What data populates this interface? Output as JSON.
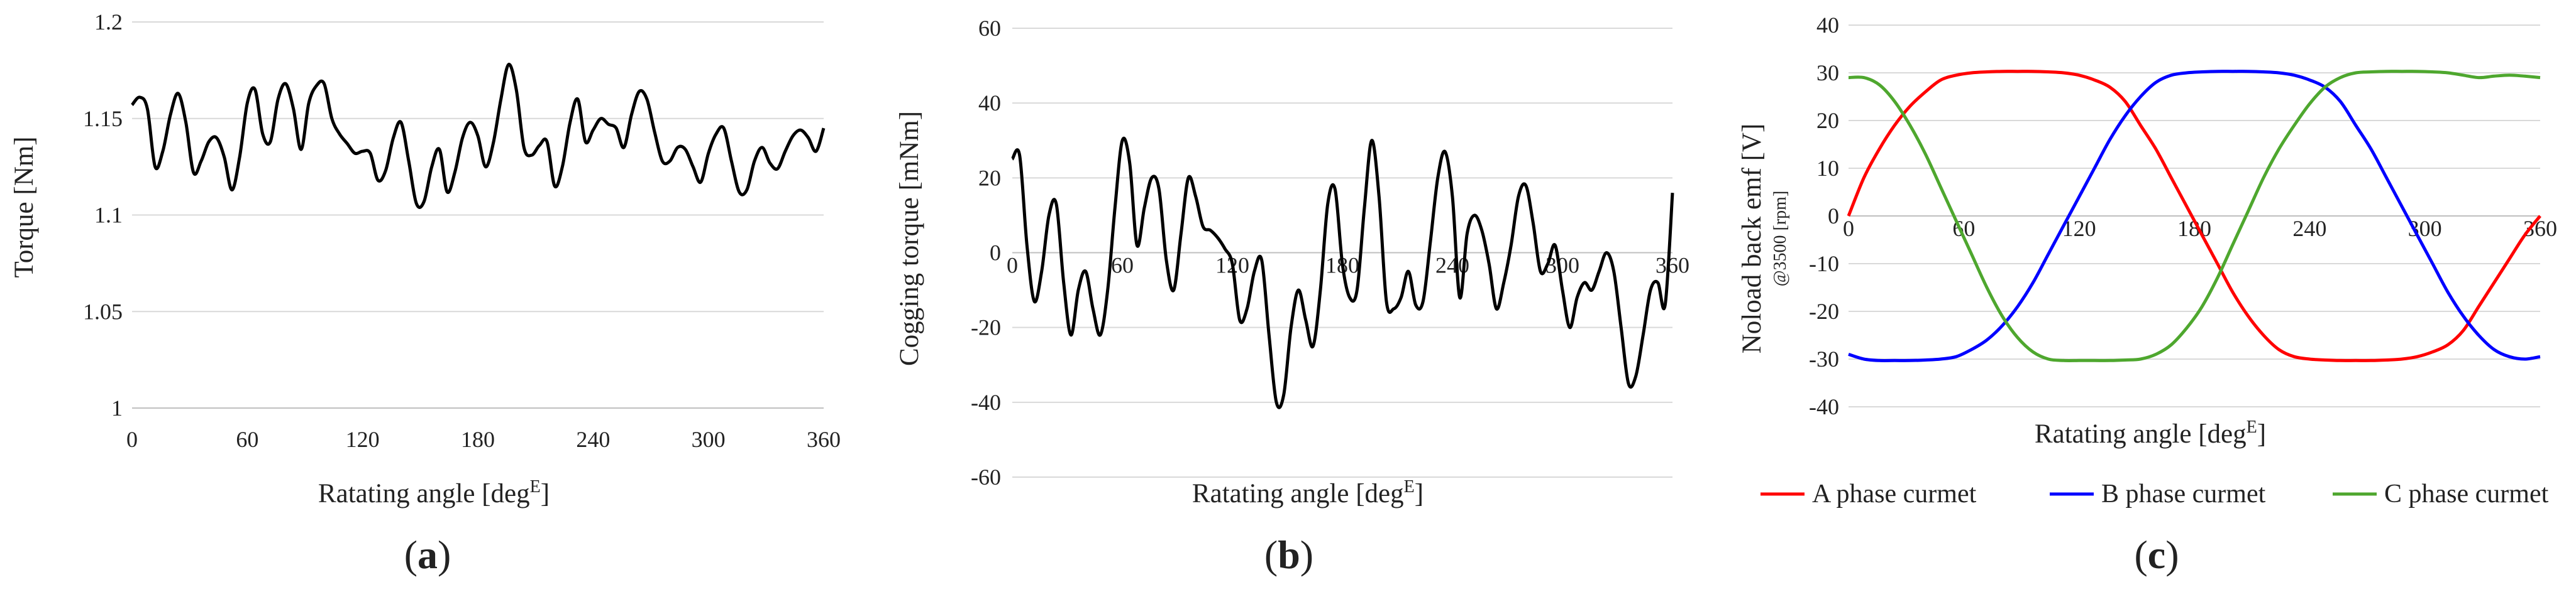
{
  "figure": {
    "panels": [
      {
        "id": "a",
        "label_open": "(",
        "label_letter": "a",
        "label_close": ")"
      },
      {
        "id": "b",
        "label_open": "(",
        "label_letter": "b",
        "label_close": ")"
      },
      {
        "id": "c",
        "label_open": "(",
        "label_letter": "c",
        "label_close": ")"
      }
    ]
  },
  "chart_data": [
    {
      "type": "line",
      "title": "",
      "xlabel": "Ratating angle [deg",
      "xlabel_sup": "E",
      "xlabel_close": "]",
      "ylabel": "Torque [Nm]",
      "xlim": [
        0,
        360
      ],
      "ylim": [
        1.0,
        1.2
      ],
      "xticks": [
        "0",
        "60",
        "120",
        "180",
        "240",
        "300",
        "360"
      ],
      "yticks": [
        "1",
        "1.05",
        "1.1",
        "1.15",
        "1.2"
      ],
      "grid": "horizontal",
      "line_color": "#000000",
      "series": [
        {
          "x": [
            0,
            4,
            8,
            12,
            16,
            20,
            24,
            28,
            32,
            36,
            40,
            44,
            48,
            52,
            56,
            60,
            64,
            68,
            72,
            76,
            80,
            84,
            88,
            92,
            96,
            100,
            104,
            108,
            112,
            116,
            120,
            124,
            128,
            132,
            136,
            140,
            144,
            148,
            152,
            156,
            160,
            164,
            168,
            172,
            176,
            180,
            184,
            188,
            192,
            196,
            200,
            204,
            208,
            212,
            216,
            220,
            224,
            228,
            232,
            236,
            240,
            244,
            248,
            252,
            256,
            260,
            264,
            268,
            272,
            276,
            280,
            284,
            288,
            292,
            296,
            300,
            304,
            308,
            312,
            316,
            320,
            324,
            328,
            332,
            336,
            340,
            344,
            348,
            352,
            356,
            360
          ],
          "values": [
            1.157,
            1.161,
            1.155,
            1.125,
            1.133,
            1.152,
            1.163,
            1.148,
            1.122,
            1.128,
            1.138,
            1.14,
            1.13,
            1.113,
            1.13,
            1.158,
            1.165,
            1.142,
            1.138,
            1.16,
            1.168,
            1.155,
            1.134,
            1.158,
            1.167,
            1.168,
            1.15,
            1.142,
            1.137,
            1.132,
            1.133,
            1.132,
            1.118,
            1.123,
            1.14,
            1.148,
            1.128,
            1.106,
            1.107,
            1.125,
            1.134,
            1.112,
            1.122,
            1.14,
            1.148,
            1.141,
            1.125,
            1.137,
            1.16,
            1.178,
            1.165,
            1.135,
            1.131,
            1.136,
            1.138,
            1.115,
            1.125,
            1.148,
            1.16,
            1.138,
            1.144,
            1.15,
            1.147,
            1.145,
            1.135,
            1.152,
            1.164,
            1.16,
            1.143,
            1.128,
            1.128,
            1.135,
            1.134,
            1.125,
            1.117,
            1.132,
            1.142,
            1.145,
            1.128,
            1.112,
            1.113,
            1.128,
            1.135,
            1.127,
            1.124,
            1.133,
            1.141,
            1.144,
            1.14,
            1.133,
            1.145
          ]
        }
      ]
    },
    {
      "type": "line",
      "title": "",
      "xlabel": "Ratating angle [deg",
      "xlabel_sup": "E",
      "xlabel_close": "]",
      "ylabel": "Cogging torque [mNm]",
      "xlim": [
        0,
        360
      ],
      "ylim": [
        -60,
        60
      ],
      "xticks": [
        "0",
        "60",
        "120",
        "180",
        "240",
        "300",
        "360"
      ],
      "yticks": [
        "-60",
        "-40",
        "-20",
        "0",
        "20",
        "40",
        "60"
      ],
      "grid": "horizontal",
      "x_tick_labels_at_zero": true,
      "line_color": "#000000",
      "series": [
        {
          "x": [
            0,
            4,
            8,
            12,
            16,
            20,
            24,
            28,
            32,
            36,
            40,
            44,
            48,
            52,
            56,
            60,
            64,
            68,
            72,
            76,
            80,
            84,
            88,
            92,
            96,
            100,
            104,
            108,
            112,
            116,
            120,
            124,
            128,
            132,
            136,
            140,
            144,
            148,
            152,
            156,
            160,
            164,
            168,
            172,
            176,
            180,
            184,
            188,
            192,
            196,
            200,
            204,
            208,
            212,
            216,
            220,
            224,
            228,
            232,
            236,
            240,
            244,
            248,
            252,
            256,
            260,
            264,
            268,
            272,
            276,
            280,
            284,
            288,
            292,
            296,
            300,
            304,
            308,
            312,
            316,
            320,
            324,
            328,
            332,
            336,
            340,
            344,
            348,
            352,
            356,
            360
          ],
          "values": [
            25,
            26,
            2,
            -13,
            -5,
            10,
            13,
            -8,
            -22,
            -10,
            -5,
            -15,
            -22,
            -10,
            12,
            30,
            24,
            2,
            12,
            20,
            17,
            -2,
            -10,
            5,
            20,
            15,
            7,
            6,
            4,
            1,
            -3,
            -18,
            -15,
            -5,
            -2,
            -22,
            -40,
            -38,
            -20,
            -10,
            -18,
            -25,
            -10,
            13,
            17,
            -3,
            -12,
            -10,
            12,
            30,
            15,
            -13,
            -15,
            -12,
            -5,
            -14,
            -13,
            3,
            20,
            27,
            15,
            -12,
            5,
            10,
            6,
            -3,
            -15,
            -8,
            2,
            15,
            18,
            8,
            -5,
            -3,
            2,
            -10,
            -20,
            -12,
            -8,
            -10,
            -5,
            0,
            -5,
            -20,
            -35,
            -33,
            -22,
            -10,
            -8,
            -14,
            16
          ]
        }
      ]
    },
    {
      "type": "line",
      "title": "",
      "xlabel": "Ratating angle [deg",
      "xlabel_sup": "E",
      "xlabel_close": "]",
      "ylabel": "Noload back emf [V]",
      "ylabel_sub": "@3500 [rpm]",
      "xlim": [
        0,
        360
      ],
      "ylim": [
        -40,
        40
      ],
      "xticks": [
        "0",
        "60",
        "120",
        "180",
        "240",
        "300",
        "360"
      ],
      "yticks": [
        "-40",
        "-30",
        "-20",
        "-10",
        "0",
        "10",
        "20",
        "30",
        "40"
      ],
      "grid": "horizontal",
      "x_tick_labels_at_zero": true,
      "legend": "bottom",
      "series": [
        {
          "name": "A phase curmet",
          "color": "#ff0000",
          "x": [
            0,
            8,
            16,
            24,
            32,
            40,
            48,
            56,
            64,
            72,
            80,
            88,
            96,
            104,
            112,
            120,
            128,
            136,
            144,
            152,
            160,
            168,
            176,
            184,
            192,
            200,
            208,
            216,
            224,
            232,
            240,
            248,
            256,
            264,
            272,
            280,
            288,
            296,
            304,
            312,
            320,
            328,
            336,
            344,
            352,
            360
          ],
          "values": [
            0,
            8,
            14,
            19,
            23,
            26,
            28.5,
            29.5,
            30,
            30.2,
            30.3,
            30.3,
            30.3,
            30.2,
            30,
            29.5,
            28.5,
            27,
            24,
            19,
            14,
            8,
            2,
            -4,
            -10,
            -16,
            -21,
            -25,
            -28,
            -29.5,
            -30,
            -30.2,
            -30.3,
            -30.3,
            -30.3,
            -30.2,
            -30,
            -29.5,
            -28.5,
            -27,
            -24,
            -19,
            -14,
            -9,
            -4,
            0
          ]
        },
        {
          "name": "B phase curmet",
          "color": "#0000ff",
          "x": [
            0,
            8,
            16,
            24,
            32,
            40,
            48,
            56,
            64,
            72,
            80,
            88,
            96,
            104,
            112,
            120,
            128,
            136,
            144,
            152,
            160,
            168,
            176,
            184,
            192,
            200,
            208,
            216,
            224,
            232,
            240,
            248,
            256,
            264,
            272,
            280,
            288,
            296,
            304,
            312,
            320,
            328,
            336,
            344,
            352,
            360
          ],
          "values": [
            -29,
            -30,
            -30.3,
            -30.3,
            -30.3,
            -30.2,
            -30,
            -29.5,
            -28,
            -26,
            -23,
            -19,
            -14,
            -8,
            -2,
            4,
            10,
            16,
            21,
            25,
            28,
            29.5,
            30,
            30.2,
            30.3,
            30.3,
            30.3,
            30.2,
            30,
            29.5,
            28.5,
            27,
            24,
            19,
            14,
            8,
            2,
            -4,
            -10,
            -16,
            -21,
            -25,
            -28,
            -29.5,
            -30,
            -29.5
          ]
        },
        {
          "name": "C phase curmet",
          "color": "#4ea72e",
          "x": [
            0,
            8,
            16,
            24,
            32,
            40,
            48,
            56,
            64,
            72,
            80,
            88,
            96,
            104,
            112,
            120,
            128,
            136,
            144,
            152,
            160,
            168,
            176,
            184,
            192,
            200,
            208,
            216,
            224,
            232,
            240,
            248,
            256,
            264,
            272,
            280,
            288,
            296,
            304,
            312,
            320,
            328,
            336,
            344,
            352,
            360
          ],
          "values": [
            29,
            29,
            27.5,
            24,
            19,
            13,
            6,
            -1,
            -8,
            -15,
            -21,
            -25.5,
            -28.5,
            -30,
            -30.3,
            -30.3,
            -30.3,
            -30.3,
            -30.2,
            -30,
            -29,
            -27,
            -23.5,
            -19,
            -13,
            -6,
            1,
            8,
            14,
            19,
            23.5,
            27,
            29,
            30,
            30.2,
            30.3,
            30.3,
            30.3,
            30.2,
            30,
            29.5,
            29,
            29.3,
            29.5,
            29.3,
            29
          ]
        }
      ]
    }
  ]
}
